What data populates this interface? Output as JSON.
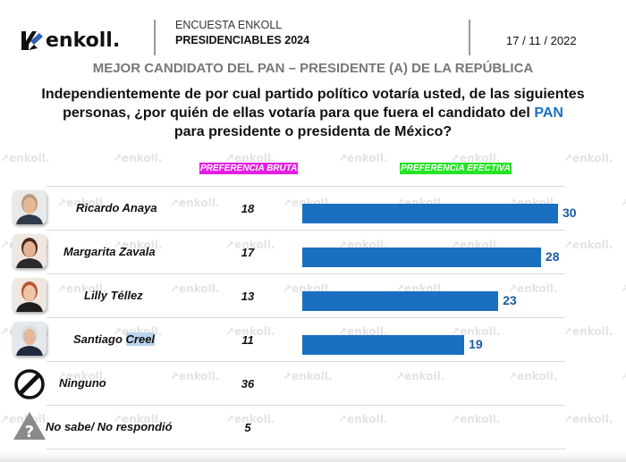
{
  "header": {
    "brand": "enkoll.",
    "survey_name": "ENCUESTA ENKOLL",
    "survey_subtitle": "PRESIDENCIABLES 2024",
    "date": "17 / 11 / 2022",
    "subtitle": "MEJOR CANDIDATO DEL PAN – PRESIDENTE (A) DE LA REPÚBLICA",
    "question_part1": "Independientemente de por cual partido político votaría usted, de las siguientes personas, ¿por quién de ellas votaría para que fuera el candidato del ",
    "question_highlight": "PAN",
    "question_part2": "para presidente o presidenta de México?",
    "watermark": "enkoll."
  },
  "colors": {
    "bar": "#1a6fc0",
    "bar_label": "#1a5aa8",
    "header_bruta_bg": "#e41ee4",
    "header_efectiva_bg": "#22e622",
    "pan_highlight": "#1a6fc2"
  },
  "chart_data": {
    "type": "bar",
    "orientation": "horizontal",
    "title": "MEJOR CANDIDATO DEL PAN – PRESIDENTE (A) DE LA REPÚBLICA",
    "column_headers": [
      "PREFERENCIA BRUTA",
      "PREFERENCIA EFECTIVA"
    ],
    "categories": [
      "Ricardo Anaya",
      "Margarita Zavala",
      "Lilly Téllez",
      "Santiago Creel",
      "Ninguno",
      "No sabe/ No respondió"
    ],
    "row_icons": [
      "photo-ricardo-anaya",
      "photo-margarita-zavala",
      "photo-lilly-tellez",
      "photo-santiago-creel",
      "prohibited-icon",
      "question-warning-icon"
    ],
    "series": [
      {
        "name": "PREFERENCIA BRUTA",
        "values": [
          18,
          17,
          13,
          11,
          36,
          5
        ],
        "display": "text"
      },
      {
        "name": "PREFERENCIA EFECTIVA",
        "values": [
          30,
          28,
          23,
          19,
          null,
          null
        ],
        "display": "bar"
      }
    ],
    "xlim": [
      0,
      30
    ],
    "grid": false,
    "legend": "none",
    "xlabel": "",
    "ylabel": ""
  }
}
